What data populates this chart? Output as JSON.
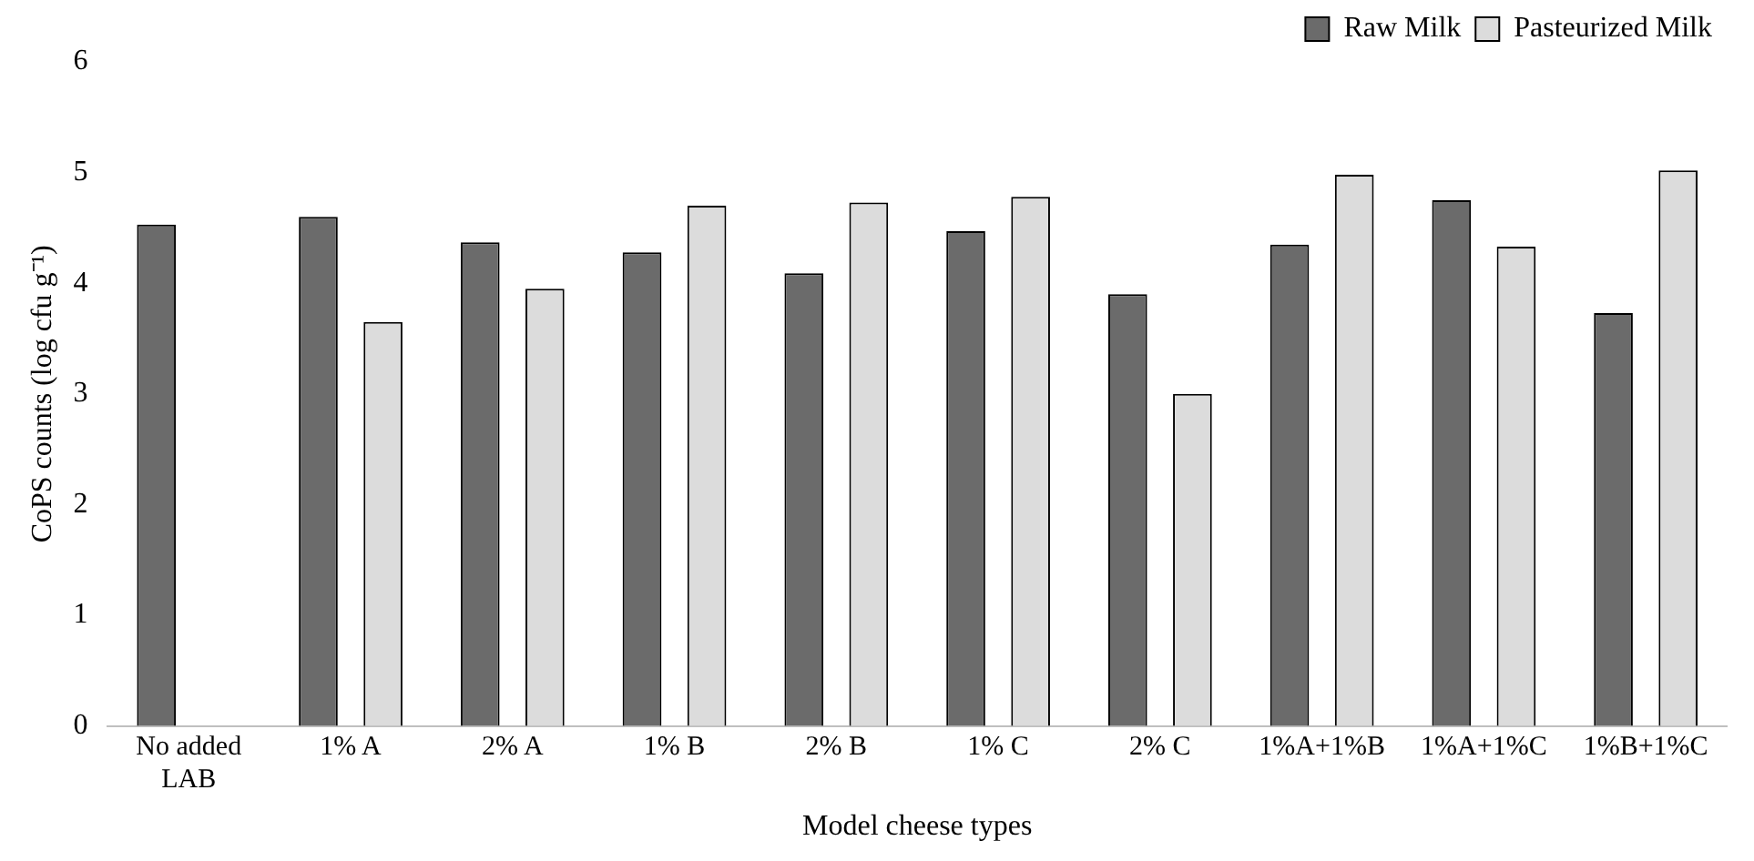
{
  "chart_data": {
    "type": "bar",
    "xlabel": "Model cheese types",
    "ylabel": "CoPS counts (log cfu g⁻¹)",
    "categories": [
      "No added LAB",
      "1% A",
      "2% A",
      "1% B",
      "2% B",
      "1% C",
      "2% C",
      "1%A+1%B",
      "1%A+1%C",
      "1%B+1%C"
    ],
    "series": [
      {
        "name": "Raw Milk",
        "color": "#6b6b6b",
        "values": [
          4.53,
          4.6,
          4.37,
          4.28,
          4.09,
          4.47,
          3.9,
          4.35,
          4.75,
          3.73
        ]
      },
      {
        "name": "Pasteurized Milk",
        "color": "#dcdcdc",
        "values": [
          null,
          3.65,
          3.95,
          4.7,
          4.73,
          4.78,
          3.0,
          4.98,
          4.33,
          5.02
        ]
      }
    ],
    "ylim": [
      0,
      6
    ],
    "yticks": [
      0,
      1,
      2,
      3,
      4,
      5,
      6
    ],
    "grid": false,
    "legend": "top right"
  }
}
